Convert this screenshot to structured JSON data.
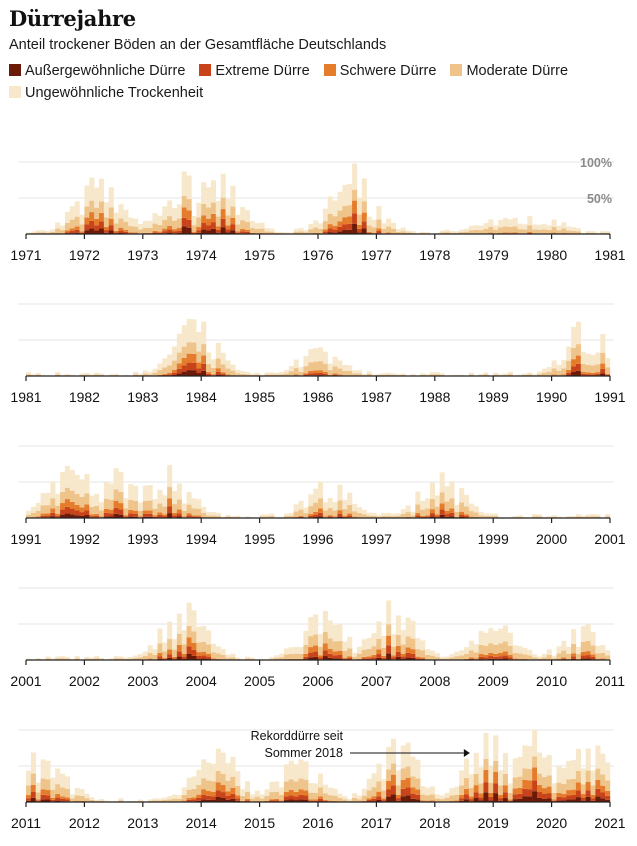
{
  "title": "Dürrejahre",
  "subtitle": "Anteil trockener Böden an der Gesamtfläche Deutschlands",
  "legend": [
    {
      "label": "Außergewöhnliche Dürre",
      "color": "#6b1a07"
    },
    {
      "label": "Extreme Dürre",
      "color": "#c9431a"
    },
    {
      "label": "Schwere Dürre",
      "color": "#e57c2c"
    },
    {
      "label": "Moderate Dürre",
      "color": "#eec48b"
    },
    {
      "label": "Ungewöhnliche Trockenheit",
      "color": "#f7e8cc"
    }
  ],
  "chart_data": {
    "type": "area",
    "stacked": true,
    "x_unit": "year",
    "y_unit": "percent of area",
    "ylim": [
      0,
      100
    ],
    "y_ticks": [
      50,
      100
    ],
    "y_tick_labels": [
      "50%",
      "100%"
    ],
    "grid": true,
    "panels": [
      {
        "x_ticks": [
          "1971",
          "1972",
          "1973",
          "1974",
          "1975",
          "1976",
          "1977",
          "1978",
          "1979",
          "1980",
          "1981"
        ],
        "peaks": [
          {
            "year": 1972.25,
            "sum": 92
          },
          {
            "year": 1973.7,
            "sum": 85
          },
          {
            "year": 1974.3,
            "sum": 98
          },
          {
            "year": 1976.6,
            "sum": 97
          },
          {
            "year": 1979.2,
            "sum": 22
          },
          {
            "year": 1979.8,
            "sum": 25
          }
        ]
      },
      {
        "x_ticks": [
          "1981",
          "1982",
          "1983",
          "1984",
          "1985",
          "1986",
          "1987",
          "1988",
          "1989",
          "1990",
          "1991"
        ],
        "peaks": [
          {
            "year": 1983.9,
            "sum": 82
          },
          {
            "year": 1986.0,
            "sum": 40
          },
          {
            "year": 1990.6,
            "sum": 82
          }
        ]
      },
      {
        "x_ticks": [
          "1991",
          "1992",
          "1993",
          "1994",
          "1995",
          "1996",
          "1997",
          "1998",
          "1999",
          "2000",
          "2001"
        ],
        "peaks": [
          {
            "year": 1991.8,
            "sum": 84
          },
          {
            "year": 1992.6,
            "sum": 75
          },
          {
            "year": 1993.4,
            "sum": 80
          },
          {
            "year": 1996.2,
            "sum": 56
          },
          {
            "year": 1998.1,
            "sum": 63
          }
        ]
      },
      {
        "x_ticks": [
          "2001",
          "2002",
          "2003",
          "2004",
          "2005",
          "2006",
          "2007",
          "2008",
          "2009",
          "2010",
          "2011"
        ],
        "peaks": [
          {
            "year": 2003.7,
            "sum": 80
          },
          {
            "year": 2006.1,
            "sum": 70
          },
          {
            "year": 2007.3,
            "sum": 86
          },
          {
            "year": 2009.0,
            "sum": 52
          },
          {
            "year": 2010.6,
            "sum": 55
          }
        ]
      },
      {
        "x_ticks": [
          "2011",
          "2012",
          "2013",
          "2014",
          "2015",
          "2016",
          "2017",
          "2018",
          "2019",
          "2020",
          "2021"
        ],
        "peaks": [
          {
            "year": 2011.3,
            "sum": 75
          },
          {
            "year": 2014.3,
            "sum": 82
          },
          {
            "year": 2015.7,
            "sum": 64
          },
          {
            "year": 2017.4,
            "sum": 88
          },
          {
            "year": 2018.9,
            "sum": 100
          },
          {
            "year": 2019.7,
            "sum": 98
          },
          {
            "year": 2020.6,
            "sum": 98
          }
        ]
      }
    ],
    "annotation": {
      "text_line1": "Rekorddürre seit",
      "text_line2": "Sommer 2018",
      "year": 2018.6
    }
  }
}
